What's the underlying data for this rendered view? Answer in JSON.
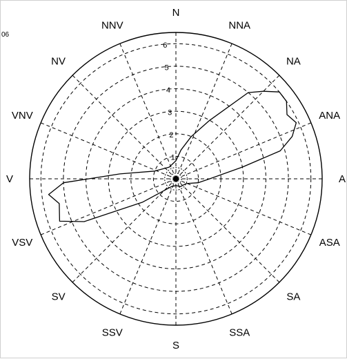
{
  "chart_data": {
    "type": "polar",
    "directions": [
      "N",
      "NNA",
      "NA",
      "ANA",
      "A",
      "ASA",
      "SA",
      "SSA",
      "S",
      "SSV",
      "SV",
      "VSV",
      "V",
      "VNV",
      "NV",
      "NNV"
    ],
    "radial_ticks": [
      "1",
      "2",
      "3",
      "4",
      "5",
      "6"
    ],
    "corner_label": "06",
    "rmax": 6.5,
    "series": [
      {
        "type": "line",
        "points": [
          {
            "angle": 0,
            "r": 0.8
          },
          {
            "angle": 10,
            "r": 1.3
          },
          {
            "angle": 20,
            "r": 2.0
          },
          {
            "angle": 30,
            "r": 3.0
          },
          {
            "angle": 40,
            "r": 5.0
          },
          {
            "angle": 45,
            "r": 5.5
          },
          {
            "angle": 50,
            "r": 6.0
          },
          {
            "angle": 55,
            "r": 6.0
          },
          {
            "angle": 60,
            "r": 5.7
          },
          {
            "angle": 65,
            "r": 5.9
          },
          {
            "angle": 70,
            "r": 5.5
          },
          {
            "angle": 75,
            "r": 4.8
          },
          {
            "angle": 80,
            "r": 3.0
          },
          {
            "angle": 90,
            "r": 1.5
          },
          {
            "angle": 100,
            "r": 1.0
          },
          {
            "angle": 115,
            "r": 0.5
          },
          {
            "angle": 150,
            "r": 0.4
          },
          {
            "angle": 180,
            "r": 0.3
          },
          {
            "angle": 210,
            "r": 0.4
          },
          {
            "angle": 235,
            "r": 1.8
          },
          {
            "angle": 245,
            "r": 4.5
          },
          {
            "angle": 250,
            "r": 5.5
          },
          {
            "angle": 258,
            "r": 5.3
          },
          {
            "angle": 263,
            "r": 5.7
          },
          {
            "angle": 268,
            "r": 5.0
          },
          {
            "angle": 275,
            "r": 2.5
          },
          {
            "angle": 290,
            "r": 1.0
          },
          {
            "angle": 330,
            "r": 0.6
          },
          {
            "angle": 360,
            "r": 0.8
          }
        ]
      }
    ]
  }
}
